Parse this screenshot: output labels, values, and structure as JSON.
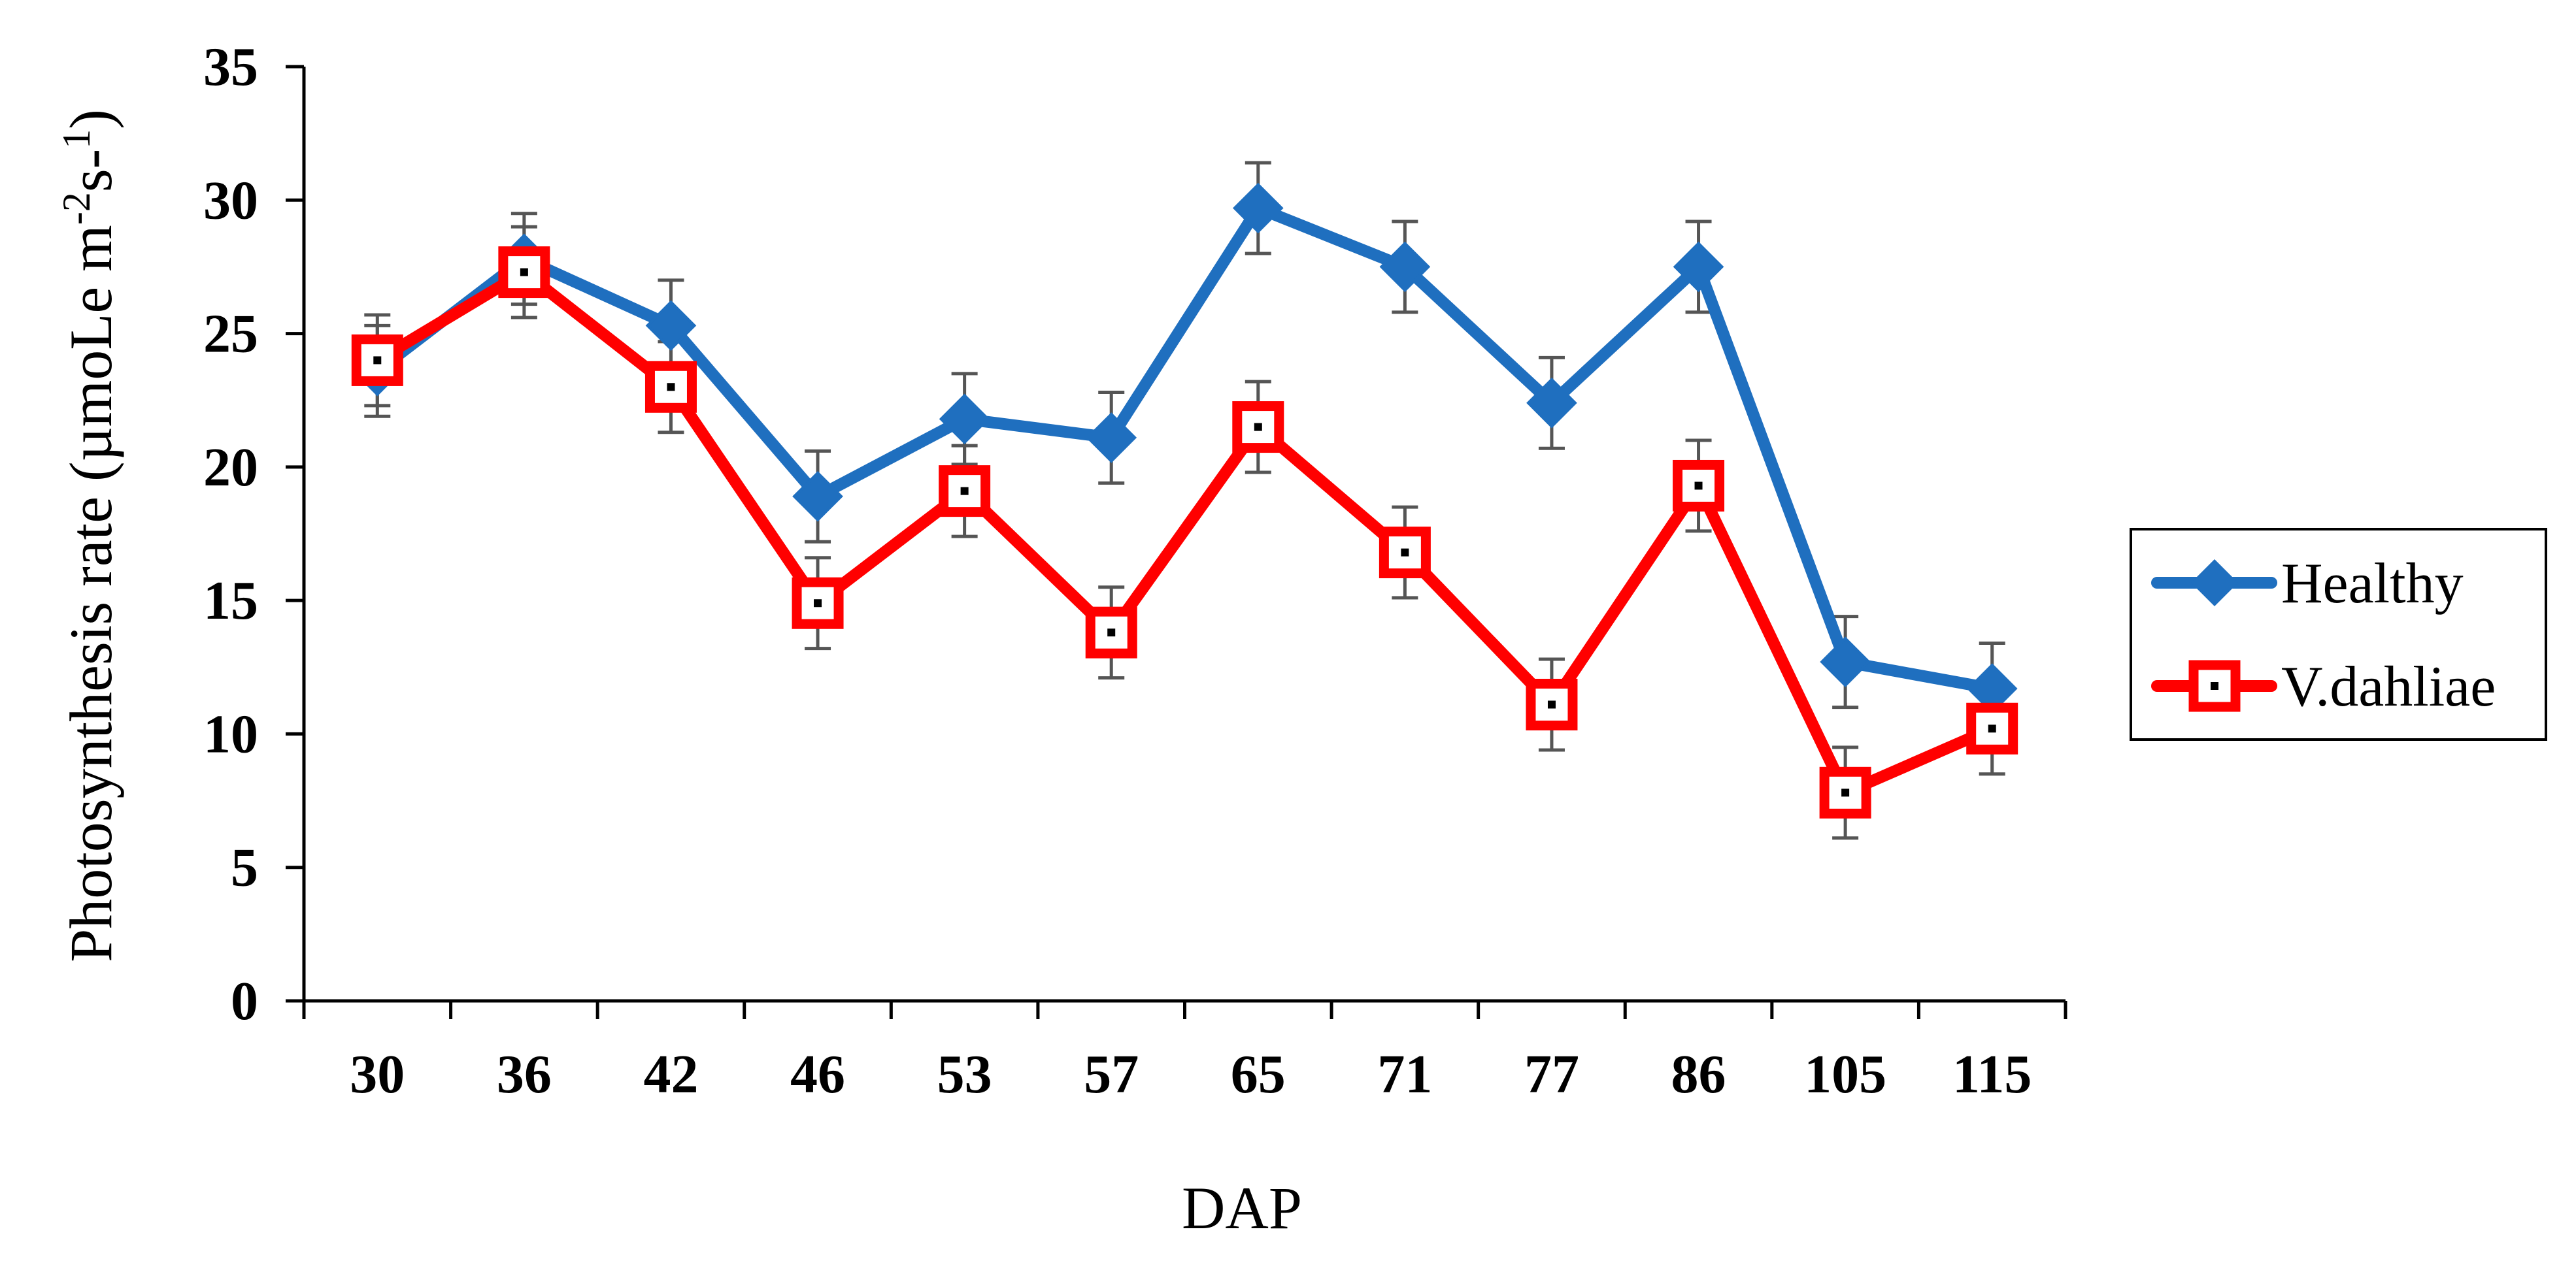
{
  "chart_data": {
    "type": "line",
    "title": "",
    "xlabel": "DAP",
    "ylabel": "Photosynthesis rate (µmoLe m-2s-1)",
    "ylabel_parts": {
      "prefix": "Photosynthesis rate (µmoLe m",
      "sup1": "-2",
      "mid": "s-",
      "sup2": "1",
      "suffix": ")"
    },
    "categories": [
      "30",
      "36",
      "42",
      "46",
      "53",
      "57",
      "65",
      "71",
      "77",
      "86",
      "105",
      "115"
    ],
    "ylim": [
      0,
      35
    ],
    "yticks": [
      0,
      5,
      10,
      15,
      20,
      25,
      30,
      35
    ],
    "grid": false,
    "legend_position": "right",
    "series": [
      {
        "name": "Healthy",
        "color": "#1F6FBF",
        "marker": "diamond",
        "values": [
          23.6,
          27.8,
          25.3,
          18.9,
          21.8,
          21.1,
          29.7,
          27.5,
          22.4,
          27.5,
          12.7,
          11.7
        ],
        "errors": [
          1.7,
          1.7,
          1.7,
          1.7,
          1.7,
          1.7,
          1.7,
          1.7,
          1.7,
          1.7,
          1.7,
          1.7
        ]
      },
      {
        "name": "V.dahliae",
        "color": "#FF0000",
        "marker": "square",
        "values": [
          24.0,
          27.3,
          23.0,
          14.9,
          19.1,
          13.8,
          21.5,
          16.8,
          11.1,
          19.3,
          7.8,
          10.2
        ],
        "errors": [
          1.7,
          1.7,
          1.7,
          1.7,
          1.7,
          1.7,
          1.7,
          1.7,
          1.7,
          1.7,
          1.7,
          1.7
        ]
      }
    ]
  }
}
